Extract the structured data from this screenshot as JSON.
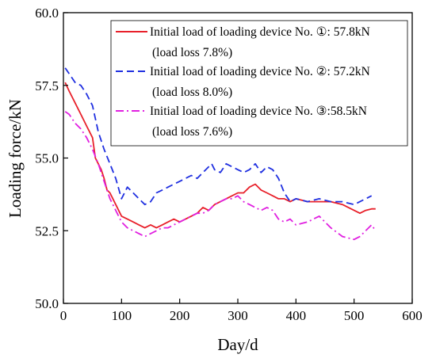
{
  "chart_data": {
    "type": "line",
    "xlabel": "Day/d",
    "ylabel": "Loading force/kN",
    "xlim": [
      0,
      600
    ],
    "ylim": [
      50.0,
      60.0
    ],
    "x_ticks": [
      "0",
      "100",
      "200",
      "300",
      "400",
      "500",
      "600"
    ],
    "y_ticks": [
      "50.0",
      "52.5",
      "55.0",
      "57.5",
      "60.0"
    ],
    "grid": false,
    "legend_position": "top-right",
    "series": [
      {
        "name": "Initial load of loading device No. ①: 57.8kN",
        "name_line2": "(load loss 7.8%)",
        "color": "#e8202a",
        "dash": "solid",
        "x": [
          3,
          10,
          20,
          30,
          40,
          50,
          55,
          60,
          65,
          70,
          75,
          80,
          90,
          100,
          110,
          120,
          130,
          140,
          150,
          160,
          170,
          180,
          190,
          200,
          210,
          220,
          230,
          240,
          250,
          260,
          270,
          280,
          290,
          300,
          310,
          320,
          330,
          340,
          350,
          360,
          370,
          380,
          390,
          400,
          420,
          440,
          460,
          480,
          500,
          510,
          520,
          530,
          537
        ],
        "values": [
          57.6,
          57.3,
          56.9,
          56.5,
          56.1,
          55.7,
          55.0,
          54.8,
          54.6,
          54.3,
          53.9,
          53.8,
          53.4,
          53.0,
          52.9,
          52.8,
          52.7,
          52.6,
          52.7,
          52.6,
          52.7,
          52.8,
          52.9,
          52.8,
          52.9,
          53.0,
          53.1,
          53.3,
          53.2,
          53.4,
          53.5,
          53.6,
          53.7,
          53.8,
          53.8,
          54.0,
          54.1,
          53.9,
          53.8,
          53.7,
          53.6,
          53.6,
          53.5,
          53.6,
          53.5,
          53.5,
          53.5,
          53.4,
          53.2,
          53.1,
          53.2,
          53.25,
          53.25
        ]
      },
      {
        "name": "Initial load of loading device No. ②: 57.2kN",
        "name_line2": "(load loss 8.0%)",
        "color": "#1f2fe0",
        "dash": "dashed",
        "x": [
          3,
          10,
          20,
          30,
          40,
          50,
          60,
          70,
          80,
          90,
          100,
          110,
          120,
          130,
          140,
          150,
          160,
          170,
          180,
          190,
          200,
          210,
          220,
          230,
          240,
          250,
          255,
          260,
          270,
          280,
          290,
          300,
          310,
          320,
          330,
          340,
          350,
          360,
          370,
          380,
          390,
          400,
          420,
          440,
          460,
          480,
          500,
          520,
          530
        ],
        "values": [
          58.1,
          57.9,
          57.6,
          57.5,
          57.2,
          56.8,
          55.9,
          55.3,
          54.8,
          54.3,
          53.6,
          54.0,
          53.8,
          53.6,
          53.4,
          53.5,
          53.8,
          53.9,
          54.0,
          54.1,
          54.2,
          54.3,
          54.4,
          54.3,
          54.5,
          54.7,
          54.8,
          54.6,
          54.5,
          54.8,
          54.7,
          54.6,
          54.5,
          54.6,
          54.8,
          54.5,
          54.7,
          54.6,
          54.3,
          53.8,
          53.5,
          53.6,
          53.5,
          53.6,
          53.5,
          53.5,
          53.4,
          53.6,
          53.7
        ]
      },
      {
        "name": "Initial load of loading device No. ③:58.5kN",
        "name_line2": "(load loss 7.6%)",
        "color": "#e020e0",
        "dash": "dashdot",
        "x": [
          3,
          10,
          20,
          30,
          40,
          50,
          60,
          70,
          80,
          90,
          100,
          110,
          120,
          130,
          140,
          150,
          160,
          170,
          180,
          190,
          200,
          210,
          220,
          230,
          240,
          250,
          260,
          270,
          280,
          290,
          300,
          310,
          320,
          330,
          340,
          350,
          360,
          370,
          380,
          390,
          400,
          420,
          440,
          460,
          480,
          500,
          510,
          520,
          530,
          537
        ],
        "values": [
          56.6,
          56.5,
          56.2,
          56.0,
          55.7,
          55.3,
          54.8,
          54.2,
          53.6,
          53.2,
          52.8,
          52.6,
          52.5,
          52.4,
          52.3,
          52.4,
          52.5,
          52.6,
          52.6,
          52.7,
          52.8,
          52.9,
          53.0,
          53.1,
          53.1,
          53.2,
          53.4,
          53.5,
          53.6,
          53.6,
          53.7,
          53.5,
          53.4,
          53.3,
          53.2,
          53.3,
          53.2,
          52.9,
          52.8,
          52.9,
          52.7,
          52.8,
          53.0,
          52.6,
          52.3,
          52.2,
          52.3,
          52.5,
          52.7,
          52.5
        ]
      }
    ]
  }
}
